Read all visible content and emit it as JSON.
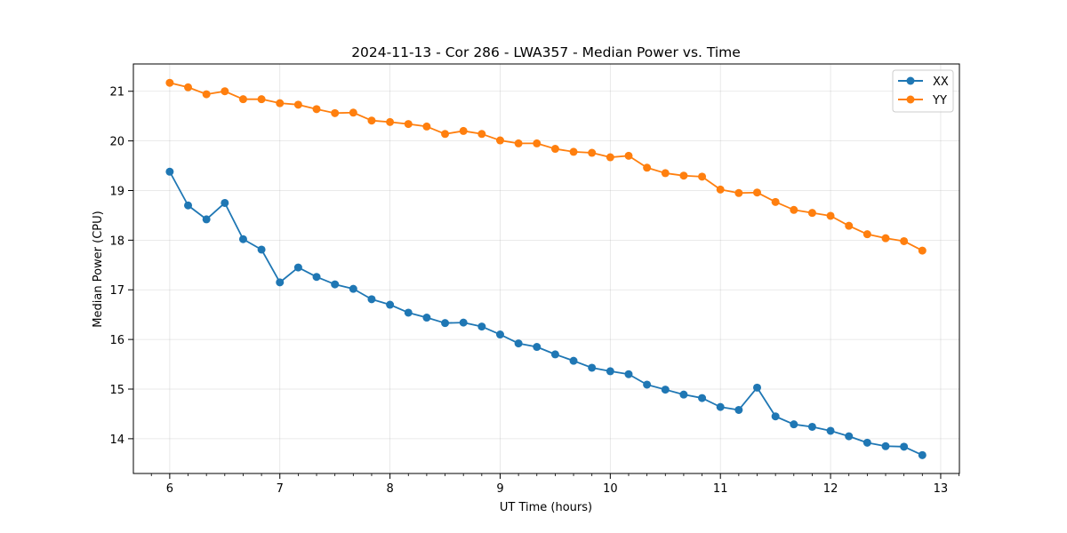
{
  "chart_data": {
    "type": "line",
    "title": "2024-11-13 - Cor 286 - LWA357 - Median Power vs. Time",
    "xlabel": "UT Time (hours)",
    "ylabel": "Median Power (CPU)",
    "xlim": [
      5.67,
      13.17
    ],
    "ylim": [
      13.3,
      21.55
    ],
    "xticks": [
      6,
      7,
      8,
      9,
      10,
      11,
      12,
      13
    ],
    "xtick_labels": [
      "6",
      "7",
      "8",
      "9",
      "10",
      "11",
      "12",
      "13"
    ],
    "yticks": [
      14,
      15,
      16,
      17,
      18,
      19,
      20,
      21
    ],
    "ytick_labels": [
      "14",
      "15",
      "16",
      "17",
      "18",
      "19",
      "20",
      "21"
    ],
    "grid": true,
    "legend_position": "top-right",
    "x": [
      6.0,
      6.1667,
      6.3333,
      6.5,
      6.6667,
      6.8333,
      7.0,
      7.1667,
      7.3333,
      7.5,
      7.6667,
      7.8333,
      8.0,
      8.1667,
      8.3333,
      8.5,
      8.6667,
      8.8333,
      9.0,
      9.1667,
      9.3333,
      9.5,
      9.6667,
      9.8333,
      10.0,
      10.1667,
      10.3333,
      10.5,
      10.6667,
      10.8333,
      11.0,
      11.1667,
      11.3333,
      11.5,
      11.6667,
      11.8333,
      12.0,
      12.1667,
      12.3333,
      12.5,
      12.6667,
      12.8333
    ],
    "series": [
      {
        "name": "XX",
        "color": "#1f77b4",
        "values": [
          19.38,
          18.7,
          18.42,
          18.75,
          18.02,
          17.81,
          17.15,
          17.45,
          17.26,
          17.11,
          17.02,
          16.81,
          16.7,
          16.54,
          16.44,
          16.33,
          16.34,
          16.26,
          16.1,
          15.92,
          15.85,
          15.7,
          15.57,
          15.43,
          15.36,
          15.3,
          15.09,
          14.99,
          14.89,
          14.82,
          14.64,
          14.58,
          15.03,
          14.45,
          14.29,
          14.24,
          14.16,
          14.05,
          13.92,
          13.85,
          13.84,
          13.67
        ]
      },
      {
        "name": "YY",
        "color": "#ff7f0e",
        "values": [
          21.17,
          21.08,
          20.94,
          21.0,
          20.84,
          20.84,
          20.76,
          20.73,
          20.64,
          20.56,
          20.57,
          20.41,
          20.38,
          20.34,
          20.29,
          20.14,
          20.2,
          20.14,
          20.01,
          19.95,
          19.95,
          19.84,
          19.78,
          19.76,
          19.67,
          19.7,
          19.46,
          19.35,
          19.3,
          19.28,
          19.02,
          18.95,
          18.96,
          18.77,
          18.61,
          18.55,
          18.49,
          18.29,
          18.12,
          18.04,
          17.98,
          17.79
        ]
      }
    ]
  }
}
